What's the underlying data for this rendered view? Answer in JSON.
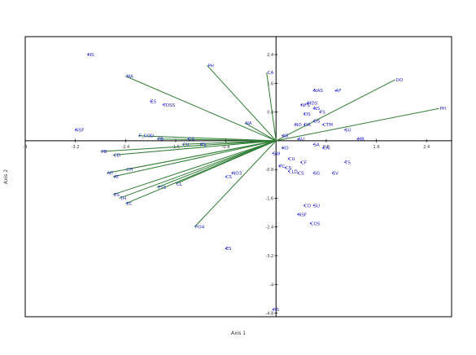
{
  "colors": {
    "vectors": "#2e7d32",
    "labels": "#1a1acd",
    "axes": "#000000",
    "frame": "#000000"
  },
  "chart_data": {
    "type": "scatter",
    "title": "",
    "xlabel": "Axis 1",
    "ylabel": "Axis 2",
    "xlim": [
      -4.0,
      2.8
    ],
    "ylim": [
      -4.9,
      2.9
    ],
    "grid": false,
    "legend": "none",
    "x_ticks": [
      {
        "v": -4.0,
        "label": "-4"
      },
      {
        "v": -3.2,
        "label": "-3.2"
      },
      {
        "v": -2.4,
        "label": "-2.4"
      },
      {
        "v": -1.6,
        "label": "-1.6"
      },
      {
        "v": -0.8,
        "label": "-0.8"
      },
      {
        "v": 0.8,
        "label": "0.8"
      },
      {
        "v": 1.6,
        "label": "1.6"
      },
      {
        "v": 2.4,
        "label": "2.4"
      }
    ],
    "y_ticks": [
      {
        "v": 2.4,
        "label": "2.4"
      },
      {
        "v": 1.6,
        "label": "1.6"
      },
      {
        "v": 0.8,
        "label": "0.8"
      },
      {
        "v": -0.8,
        "label": "-0.8"
      },
      {
        "v": -1.6,
        "label": "-1.6"
      },
      {
        "v": -2.4,
        "label": "-2.4"
      },
      {
        "v": -3.2,
        "label": "-3.2"
      },
      {
        "v": -4.0,
        "label": "-4"
      },
      {
        "v": -4.8,
        "label": "-4.8"
      }
    ],
    "vectors": [
      {
        "label": "MA",
        "x": -2.4,
        "y": 1.8
      },
      {
        "label": "PH",
        "x": -1.1,
        "y": 2.1
      },
      {
        "label": "CA",
        "x": -0.15,
        "y": 1.9
      },
      {
        "label": "NA",
        "x": -0.5,
        "y": 0.5
      },
      {
        "label": "DO",
        "x": 1.9,
        "y": 1.7
      },
      {
        "label": "PH",
        "x": 2.6,
        "y": 0.9
      },
      {
        "label": "F_COD",
        "x": -2.2,
        "y": 0.14
      },
      {
        "label": "PB",
        "x": -1.9,
        "y": 0.05
      },
      {
        "label": "CU",
        "x": -1.5,
        "y": -0.1
      },
      {
        "label": "PB",
        "x": -2.8,
        "y": -0.3
      },
      {
        "label": "CD",
        "x": -2.6,
        "y": -0.4
      },
      {
        "label": "NT",
        "x": -2.7,
        "y": -0.9
      },
      {
        "label": "AT",
        "x": -2.6,
        "y": -1.0
      },
      {
        "label": "CH",
        "x": -2.4,
        "y": -0.8
      },
      {
        "label": "CL",
        "x": -1.6,
        "y": -1.2
      },
      {
        "label": "TSS",
        "x": -1.9,
        "y": -1.3
      },
      {
        "label": "ES",
        "x": -2.6,
        "y": -1.5
      },
      {
        "label": "TH",
        "x": -2.5,
        "y": -1.6
      },
      {
        "label": "EC",
        "x": -2.4,
        "y": -1.75
      },
      {
        "label": "PO4",
        "x": -1.3,
        "y": -2.4
      }
    ],
    "points": [
      {
        "label": "NS",
        "x": -3.0,
        "y": 2.4
      },
      {
        "label": "NSF",
        "x": -3.2,
        "y": 0.3
      },
      {
        "label": "ES",
        "x": -2.0,
        "y": 1.1
      },
      {
        "label": "TDSS",
        "x": -1.8,
        "y": 1.0
      },
      {
        "label": "NO3",
        "x": -0.7,
        "y": -0.9
      },
      {
        "label": "CS",
        "x": -0.8,
        "y": -1.0
      },
      {
        "label": "DS",
        "x": -1.4,
        "y": 0.05
      },
      {
        "label": "TS",
        "x": -1.2,
        "y": -0.1
      },
      {
        "label": "ES",
        "x": -0.8,
        "y": -3.0
      },
      {
        "label": "HS",
        "x": -0.05,
        "y": -4.7
      },
      {
        "label": "NAS",
        "x": 0.6,
        "y": 1.4
      },
      {
        "label": "AF",
        "x": 0.95,
        "y": 1.4
      },
      {
        "label": "NFS",
        "x": 0.4,
        "y": 1.0
      },
      {
        "label": "MDS",
        "x": 0.5,
        "y": 1.05
      },
      {
        "label": "DS",
        "x": 0.45,
        "y": 0.75
      },
      {
        "label": "NS",
        "x": 0.6,
        "y": 0.9
      },
      {
        "label": "FS",
        "x": 0.7,
        "y": 0.8
      },
      {
        "label": "NO",
        "x": 0.3,
        "y": 0.45
      },
      {
        "label": "DA",
        "x": 0.45,
        "y": 0.45
      },
      {
        "label": "DS",
        "x": 0.6,
        "y": 0.55
      },
      {
        "label": "CTM",
        "x": 0.75,
        "y": 0.45
      },
      {
        "label": "SU",
        "x": 1.1,
        "y": 0.3
      },
      {
        "label": "MR",
        "x": 1.3,
        "y": 0.05
      },
      {
        "label": "AB",
        "x": 0.1,
        "y": 0.15
      },
      {
        "label": "AU",
        "x": 0.35,
        "y": 0.05
      },
      {
        "label": "SA",
        "x": 0.6,
        "y": -0.1
      },
      {
        "label": "KO",
        "x": 0.1,
        "y": -0.2
      },
      {
        "label": "CN",
        "x": 0.75,
        "y": -0.2
      },
      {
        "label": "SW",
        "x": -0.05,
        "y": -0.35
      },
      {
        "label": "CU",
        "x": 0.2,
        "y": -0.5
      },
      {
        "label": "CF",
        "x": 0.4,
        "y": -0.6
      },
      {
        "label": "TS",
        "x": 1.1,
        "y": -0.6
      },
      {
        "label": "PC",
        "x": 0.05,
        "y": -0.7
      },
      {
        "label": "CS",
        "x": 0.15,
        "y": -0.75
      },
      {
        "label": "CLD",
        "x": 0.2,
        "y": -0.85
      },
      {
        "label": "CS",
        "x": 0.35,
        "y": -0.9
      },
      {
        "label": "SG",
        "x": 0.6,
        "y": -0.9
      },
      {
        "label": "SV",
        "x": 0.9,
        "y": -0.9
      },
      {
        "label": "CO",
        "x": 0.45,
        "y": -1.8
      },
      {
        "label": "SU",
        "x": 0.6,
        "y": -1.8
      },
      {
        "label": "NSF",
        "x": 0.35,
        "y": -2.05
      },
      {
        "label": "COS",
        "x": 0.55,
        "y": -2.3
      }
    ]
  }
}
